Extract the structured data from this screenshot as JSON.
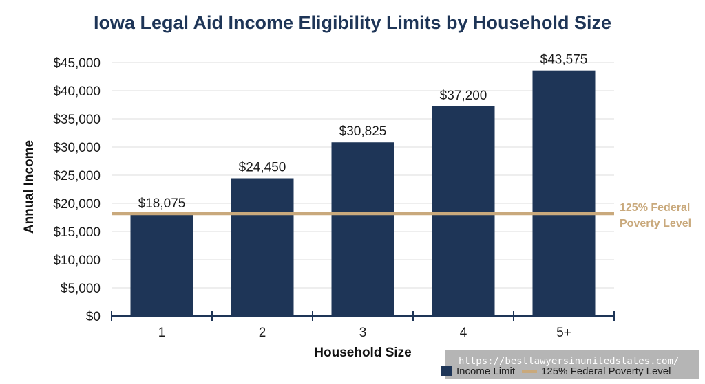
{
  "chart_data": {
    "type": "bar",
    "title": "Iowa Legal Aid Income Eligibility Limits by Household Size",
    "xlabel": "Household Size",
    "ylabel": "Annual Income",
    "categories": [
      "1",
      "2",
      "3",
      "4",
      "5+"
    ],
    "series": [
      {
        "name": "Income Limit",
        "values": [
          18075,
          24450,
          30825,
          37200,
          43575
        ]
      }
    ],
    "data_labels": [
      "$18,075",
      "$24,450",
      "$30,825",
      "$37,200",
      "$43,575"
    ],
    "y_ticks": [
      0,
      5000,
      10000,
      15000,
      20000,
      25000,
      30000,
      35000,
      40000,
      45000
    ],
    "y_tick_labels": [
      "$0",
      "$5,000",
      "$10,000",
      "$15,000",
      "$20,000",
      "$25,000",
      "$30,000",
      "$35,000",
      "$40,000",
      "$45,000"
    ],
    "ylim": [
      0,
      45000
    ],
    "grid": true,
    "reference_line": {
      "name": "125% Federal Poverty Level",
      "value": 18075,
      "label_lines": [
        "125% Federal",
        "Poverty Level"
      ]
    },
    "legend_position": "bottom-right",
    "colors": {
      "bar": "#1e3557",
      "reference_line": "#c9a97c",
      "grid": "#dddddd",
      "axis": "#1e3557"
    }
  },
  "watermark": {
    "text": "https://bestlawyersinunitedstates.com/"
  },
  "legend": {
    "items": [
      {
        "label": "Income Limit",
        "icon": "bar-swatch"
      },
      {
        "label": "125% Federal Poverty Level",
        "icon": "line-swatch"
      }
    ]
  }
}
